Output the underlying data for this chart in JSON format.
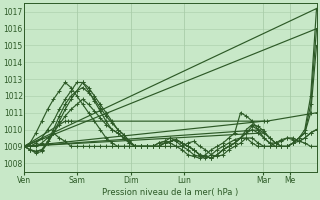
{
  "xlabel": "Pression niveau de la mer( hPa )",
  "ylim": [
    1007.5,
    1017.5
  ],
  "yticks": [
    1008,
    1009,
    1010,
    1011,
    1012,
    1013,
    1014,
    1015,
    1016,
    1017
  ],
  "xtick_labels": [
    "Ven",
    "Sam",
    "Dim",
    "Lun",
    "Mar",
    "Me"
  ],
  "xtick_positions": [
    0.0,
    0.182,
    0.364,
    0.546,
    0.818,
    0.909
  ],
  "bg_color": "#c8e8c8",
  "grid_color": "#a8cca8",
  "line_color": "#2d5a27",
  "lines": [
    {
      "x": [
        0.0,
        0.02,
        0.04,
        0.06,
        0.08,
        0.1,
        0.12,
        0.14,
        0.16,
        0.18,
        0.2,
        0.22,
        0.24,
        0.26,
        0.28,
        0.3,
        0.32,
        0.34,
        0.36,
        0.38,
        0.4,
        0.42,
        0.44,
        0.46,
        0.48,
        0.5,
        0.52,
        0.54,
        0.56,
        0.58,
        0.6,
        0.62,
        0.64,
        0.66,
        0.68,
        0.7,
        0.72,
        0.74,
        0.76,
        0.78,
        0.8,
        0.82,
        0.84,
        0.86,
        0.88,
        0.9,
        0.92,
        0.94,
        0.96,
        0.98,
        1.0
      ],
      "y": [
        1009.0,
        1008.8,
        1008.6,
        1008.7,
        1009.2,
        1009.8,
        1010.5,
        1011.2,
        1011.8,
        1012.3,
        1012.8,
        1012.5,
        1012.0,
        1011.5,
        1011.0,
        1010.5,
        1010.0,
        1009.7,
        1009.3,
        1009.0,
        1009.0,
        1009.0,
        1009.0,
        1009.0,
        1009.2,
        1009.3,
        1009.4,
        1009.2,
        1009.0,
        1008.8,
        1008.5,
        1008.4,
        1008.3,
        1008.5,
        1008.8,
        1009.0,
        1009.2,
        1009.5,
        1010.0,
        1010.3,
        1010.2,
        1009.9,
        1009.5,
        1009.2,
        1009.0,
        1009.0,
        1009.2,
        1009.5,
        1010.0,
        1012.0,
        1017.2
      ]
    },
    {
      "x": [
        0.0,
        0.02,
        0.04,
        0.06,
        0.08,
        0.1,
        0.12,
        0.14,
        0.16,
        0.18,
        0.2,
        0.22,
        0.24,
        0.26,
        0.28,
        0.3,
        0.32,
        0.34,
        0.36,
        0.38,
        0.4,
        0.42,
        0.44,
        0.46,
        0.48,
        0.5,
        0.52,
        0.54,
        0.56,
        0.58,
        0.6,
        0.62,
        0.64,
        0.66,
        0.68,
        0.7,
        0.72,
        0.74,
        0.76,
        0.78,
        0.8,
        0.82,
        0.84,
        0.86,
        0.88,
        0.9,
        0.92,
        0.94,
        0.96,
        0.98,
        1.0
      ],
      "y": [
        1009.0,
        1008.8,
        1008.7,
        1008.8,
        1009.3,
        1010.0,
        1010.8,
        1011.5,
        1012.0,
        1012.3,
        1012.5,
        1012.2,
        1011.8,
        1011.3,
        1010.8,
        1010.4,
        1010.0,
        1009.7,
        1009.3,
        1009.0,
        1009.0,
        1009.0,
        1009.0,
        1009.0,
        1009.2,
        1009.3,
        1009.4,
        1009.2,
        1009.0,
        1008.8,
        1008.5,
        1008.4,
        1008.3,
        1008.5,
        1008.8,
        1009.0,
        1009.2,
        1009.5,
        1009.8,
        1010.2,
        1010.0,
        1009.8,
        1009.5,
        1009.2,
        1009.0,
        1009.0,
        1009.2,
        1009.5,
        1009.8,
        1011.5,
        1016.0
      ]
    },
    {
      "x": [
        0.0,
        0.02,
        0.04,
        0.06,
        0.08,
        0.1,
        0.12,
        0.14,
        0.16,
        0.18,
        0.2,
        0.22,
        0.24,
        0.26,
        0.28,
        0.3,
        0.32,
        0.34,
        0.36,
        0.38,
        0.4,
        0.42,
        0.44,
        0.46,
        0.48,
        0.5,
        0.52,
        0.54,
        0.56,
        0.58,
        0.6,
        0.62,
        0.64,
        0.66,
        0.68,
        0.7,
        0.72,
        0.74,
        0.76,
        0.78,
        0.8,
        0.82,
        0.84,
        0.86,
        0.88,
        0.9,
        0.92,
        0.94,
        0.96,
        0.98,
        1.0
      ],
      "y": [
        1009.0,
        1008.8,
        1008.7,
        1008.8,
        1009.2,
        1009.8,
        1010.3,
        1010.8,
        1011.2,
        1011.5,
        1011.8,
        1011.5,
        1011.1,
        1010.7,
        1010.3,
        1010.0,
        1009.8,
        1009.5,
        1009.2,
        1009.0,
        1009.0,
        1009.0,
        1009.0,
        1009.0,
        1009.2,
        1009.3,
        1009.4,
        1009.2,
        1009.0,
        1008.8,
        1008.5,
        1008.4,
        1008.3,
        1008.5,
        1008.8,
        1009.0,
        1009.2,
        1009.5,
        1009.8,
        1010.0,
        1009.8,
        1009.5,
        1009.2,
        1009.0,
        1009.0,
        1009.0,
        1009.2,
        1009.5,
        1009.8,
        1011.0,
        1015.0
      ]
    },
    {
      "x": [
        0.0,
        0.14,
        0.15,
        0.16,
        0.82,
        0.83,
        1.0
      ],
      "y": [
        1009.0,
        1010.5,
        1010.5,
        1010.5,
        1010.5,
        1010.5,
        1011.0
      ]
    },
    {
      "x": [
        0.0,
        0.02,
        0.04,
        0.06,
        0.08,
        0.1,
        0.12,
        0.14,
        0.16,
        0.18,
        0.2,
        0.22,
        0.24,
        0.26,
        0.28,
        0.3,
        0.32,
        0.34,
        0.36,
        0.38,
        0.4,
        0.42,
        0.44,
        0.46,
        0.48,
        0.5,
        0.52,
        0.54,
        0.56,
        0.58,
        0.6,
        0.62,
        0.64,
        0.66,
        0.68,
        0.7,
        0.72,
        0.74,
        0.76,
        0.78,
        0.8,
        0.82,
        0.84,
        0.86,
        0.88,
        0.9,
        0.92,
        0.94,
        0.96,
        0.98,
        1.0
      ],
      "y": [
        1009.0,
        1009.0,
        1009.0,
        1009.2,
        1009.5,
        1009.8,
        1009.5,
        1009.3,
        1009.0,
        1009.0,
        1009.0,
        1009.0,
        1009.0,
        1009.0,
        1009.0,
        1009.0,
        1009.0,
        1009.0,
        1009.0,
        1009.0,
        1009.0,
        1009.0,
        1009.0,
        1009.0,
        1009.0,
        1009.0,
        1009.0,
        1009.0,
        1009.2,
        1009.3,
        1009.0,
        1008.8,
        1008.5,
        1008.4,
        1008.5,
        1008.8,
        1009.0,
        1009.2,
        1009.5,
        1009.5,
        1009.2,
        1009.0,
        1009.0,
        1009.0,
        1009.0,
        1009.0,
        1009.2,
        1009.3,
        1009.5,
        1009.8,
        1010.0
      ]
    },
    {
      "x": [
        0.0,
        0.02,
        0.04,
        0.06,
        0.08,
        0.1,
        0.12,
        0.14,
        0.16,
        0.18,
        0.2,
        0.22,
        0.24,
        0.26,
        0.28,
        0.3,
        0.32,
        0.34,
        0.36,
        0.38,
        0.4,
        0.42,
        0.44,
        0.46,
        0.48,
        0.5,
        0.52,
        0.54,
        0.56,
        0.58,
        0.6,
        0.62,
        0.64,
        0.66,
        0.68,
        0.7,
        0.72,
        0.74,
        0.76,
        0.78,
        0.8,
        0.82,
        0.84,
        0.86,
        0.88,
        0.9,
        0.92,
        0.94,
        0.96,
        0.98,
        1.0
      ],
      "y": [
        1009.0,
        1009.2,
        1009.8,
        1010.5,
        1011.2,
        1011.8,
        1012.3,
        1012.8,
        1012.5,
        1012.0,
        1011.5,
        1011.0,
        1010.5,
        1010.0,
        1009.5,
        1009.2,
        1009.0,
        1009.0,
        1009.0,
        1009.0,
        1009.0,
        1009.0,
        1009.0,
        1009.2,
        1009.3,
        1009.5,
        1009.3,
        1009.0,
        1008.8,
        1008.5,
        1008.4,
        1008.3,
        1008.5,
        1008.8,
        1009.0,
        1009.2,
        1009.4,
        1009.5,
        1009.5,
        1009.2,
        1009.0,
        1009.0,
        1009.0,
        1009.2,
        1009.4,
        1009.5,
        1009.4,
        1009.3,
        1009.5,
        1009.8,
        1010.0
      ]
    },
    {
      "x": [
        0.0,
        0.02,
        0.04,
        0.06,
        0.08,
        0.1,
        0.12,
        0.14,
        0.16,
        0.18,
        0.2,
        0.22,
        0.24,
        0.26,
        0.28,
        0.3,
        0.32,
        0.34,
        0.36,
        0.38,
        0.4,
        0.42,
        0.44,
        0.46,
        0.48,
        0.5,
        0.52,
        0.54,
        0.56,
        0.58,
        0.6,
        0.62,
        0.64,
        0.66,
        0.68,
        0.7,
        0.72,
        0.74,
        0.76,
        0.78,
        0.8,
        0.82,
        0.84,
        0.86,
        0.88,
        0.9,
        0.92,
        0.94,
        0.96,
        0.98,
        1.0
      ],
      "y": [
        1009.0,
        1009.0,
        1009.2,
        1009.5,
        1010.0,
        1010.5,
        1011.2,
        1011.8,
        1012.3,
        1012.8,
        1012.8,
        1012.3,
        1011.7,
        1011.1,
        1010.5,
        1010.0,
        1009.8,
        1009.5,
        1009.2,
        1009.0,
        1009.0,
        1009.0,
        1009.0,
        1009.2,
        1009.3,
        1009.2,
        1009.0,
        1008.8,
        1008.5,
        1008.4,
        1008.3,
        1008.5,
        1008.8,
        1009.0,
        1009.2,
        1009.5,
        1009.8,
        1011.0,
        1010.8,
        1010.5,
        1010.0,
        1009.5,
        1009.2,
        1009.2,
        1009.3,
        1009.5,
        1009.5,
        1009.3,
        1009.2,
        1009.0,
        1009.0
      ]
    },
    {
      "x": [
        0.0,
        1.0
      ],
      "y": [
        1009.0,
        1017.2
      ],
      "straight": true
    },
    {
      "x": [
        0.0,
        1.0
      ],
      "y": [
        1009.0,
        1016.0
      ],
      "straight": true
    },
    {
      "x": [
        0.0,
        0.82
      ],
      "y": [
        1009.0,
        1010.5
      ],
      "straight": true
    },
    {
      "x": [
        0.0,
        0.82
      ],
      "y": [
        1009.0,
        1010.0
      ],
      "straight": true
    },
    {
      "x": [
        0.0,
        0.82
      ],
      "y": [
        1009.0,
        1009.8
      ],
      "straight": true
    }
  ]
}
